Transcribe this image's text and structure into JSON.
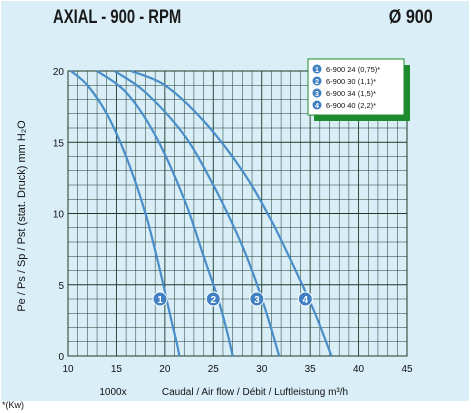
{
  "header": {
    "title": "AXIAL - 900 - RPM",
    "diameter": "Ø 900"
  },
  "footnote": "*(Kw)",
  "colors": {
    "background": "#d9eef7",
    "grid": "#1a3a2a",
    "curve": "#4a8ec9",
    "legend_border": "#1e8c2e",
    "marker": "#3f7fc2"
  },
  "chart_data": {
    "type": "line",
    "title": "",
    "xlabel": "Caudal / Air flow / Débit / Luftleistung m³/h",
    "xlabel_prefix": "1000x",
    "ylabel": "Pe / Ps / Sp / Pst (stat. Druck) mm H₂O",
    "xlim": [
      10,
      45
    ],
    "ylim": [
      0,
      20
    ],
    "x_ticks": [
      "10",
      "15",
      "20",
      "25",
      "30",
      "35",
      "40",
      "45"
    ],
    "y_ticks": [
      "0",
      "5",
      "10",
      "15",
      "20"
    ],
    "grid": true,
    "legend_position": "top-right",
    "legend": [
      {
        "marker": "1",
        "label": "6-900 24 (0,75)*"
      },
      {
        "marker": "2",
        "label": "6-900 30 (1,1)*"
      },
      {
        "marker": "3",
        "label": "6-900 34 (1,5)*"
      },
      {
        "marker": "4",
        "label": "6-900 40 (2,2)*"
      }
    ],
    "series": [
      {
        "marker": "1",
        "x": [
          10.3,
          12,
          14,
          16,
          18,
          19.5,
          20.5,
          21.2,
          21.5
        ],
        "y": [
          20,
          19,
          17,
          14,
          10,
          6,
          3,
          1,
          0
        ],
        "marker_at": [
          19.5,
          4
        ]
      },
      {
        "marker": "2",
        "x": [
          13,
          16,
          19,
          22,
          24,
          25.5,
          26.5,
          27
        ],
        "y": [
          20,
          18.5,
          15.5,
          11,
          7,
          4,
          1.5,
          0
        ],
        "marker_at": [
          25,
          4
        ]
      },
      {
        "marker": "3",
        "x": [
          14.8,
          18,
          22,
          25,
          27.5,
          29,
          30.5,
          31.8
        ],
        "y": [
          20,
          18.5,
          15.5,
          12,
          8.5,
          6,
          3,
          0
        ],
        "marker_at": [
          29.5,
          4
        ]
      },
      {
        "marker": "4",
        "x": [
          16.5,
          20,
          24,
          28,
          31,
          33.5,
          35.5,
          37.2
        ],
        "y": [
          20,
          19,
          16.5,
          13,
          9.5,
          6,
          3,
          0
        ],
        "marker_at": [
          34.5,
          4
        ]
      }
    ]
  }
}
